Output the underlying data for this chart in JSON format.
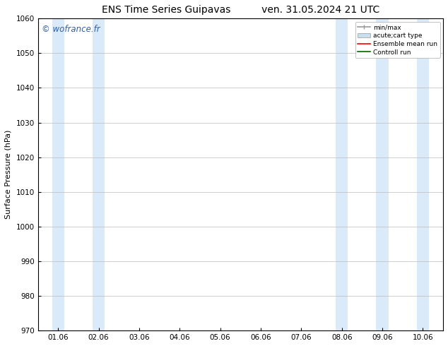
{
  "title_left": "ENS Time Series Guipavas",
  "title_right": "ven. 31.05.2024 21 UTC",
  "ylabel": "Surface Pressure (hPa)",
  "ylim": [
    970,
    1060
  ],
  "yticks": [
    970,
    980,
    990,
    1000,
    1010,
    1020,
    1030,
    1040,
    1050,
    1060
  ],
  "xlim_min": 0.0,
  "xlim_max": 9.0,
  "xtick_labels": [
    "01.06",
    "02.06",
    "03.06",
    "04.06",
    "05.06",
    "06.06",
    "07.06",
    "08.06",
    "09.06",
    "10.06"
  ],
  "xtick_positions": [
    0,
    1,
    2,
    3,
    4,
    5,
    6,
    7,
    8,
    9
  ],
  "watermark": "© wofrance.fr",
  "watermark_color": "#3060a0",
  "background_color": "#ffffff",
  "shaded_bands": [
    {
      "x_start": -0.15,
      "x_end": 0.15,
      "color": "#daeaf8"
    },
    {
      "x_start": 0.85,
      "x_end": 1.15,
      "color": "#daeaf8"
    },
    {
      "x_start": 6.85,
      "x_end": 7.15,
      "color": "#daeaf8"
    },
    {
      "x_start": 7.85,
      "x_end": 8.15,
      "color": "#daeaf8"
    },
    {
      "x_start": 8.85,
      "x_end": 9.15,
      "color": "#daeaf8"
    }
  ],
  "legend_entries": [
    {
      "label": "min/max",
      "color": "#aaaaaa",
      "type": "errorbar"
    },
    {
      "label": "acute;cart type",
      "color": "#c8dff0",
      "type": "bar"
    },
    {
      "label": "Ensemble mean run",
      "color": "#ff0000",
      "type": "line"
    },
    {
      "label": "Controll run",
      "color": "#006600",
      "type": "line"
    }
  ],
  "title_fontsize": 10,
  "tick_fontsize": 7.5,
  "ylabel_fontsize": 8
}
